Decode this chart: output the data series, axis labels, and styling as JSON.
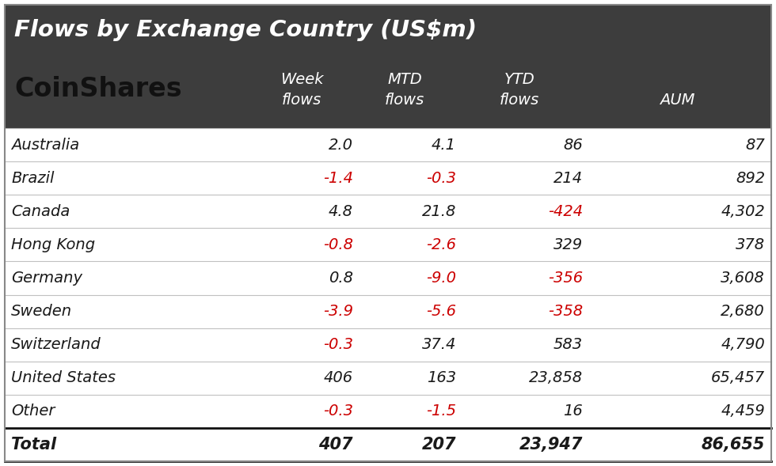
{
  "title": "Flows by Exchange Country (US$m)",
  "logo_text": "CoinShares",
  "header_bg": "#3d3d3d",
  "header_text_color": "#ffffff",
  "body_bg": "#ffffff",
  "body_text_color": "#1a1a1a",
  "negative_color": "#cc0000",
  "col_header_line1": [
    "",
    "Week",
    "MTD",
    "YTD",
    ""
  ],
  "col_header_line2": [
    "",
    "flows",
    "flows",
    "flows",
    "AUM"
  ],
  "rows": [
    {
      "country": "Australia",
      "week": "2.0",
      "mtd": "4.1",
      "ytd": "86",
      "aum": "87",
      "week_neg": false,
      "mtd_neg": false,
      "ytd_neg": false
    },
    {
      "country": "Brazil",
      "week": "-1.4",
      "mtd": "-0.3",
      "ytd": "214",
      "aum": "892",
      "week_neg": true,
      "mtd_neg": true,
      "ytd_neg": false
    },
    {
      "country": "Canada",
      "week": "4.8",
      "mtd": "21.8",
      "ytd": "-424",
      "aum": "4,302",
      "week_neg": false,
      "mtd_neg": false,
      "ytd_neg": true
    },
    {
      "country": "Hong Kong",
      "week": "-0.8",
      "mtd": "-2.6",
      "ytd": "329",
      "aum": "378",
      "week_neg": true,
      "mtd_neg": true,
      "ytd_neg": false
    },
    {
      "country": "Germany",
      "week": "0.8",
      "mtd": "-9.0",
      "ytd": "-356",
      "aum": "3,608",
      "week_neg": false,
      "mtd_neg": true,
      "ytd_neg": true
    },
    {
      "country": "Sweden",
      "week": "-3.9",
      "mtd": "-5.6",
      "ytd": "-358",
      "aum": "2,680",
      "week_neg": true,
      "mtd_neg": true,
      "ytd_neg": true
    },
    {
      "country": "Switzerland",
      "week": "-0.3",
      "mtd": "37.4",
      "ytd": "583",
      "aum": "4,790",
      "week_neg": true,
      "mtd_neg": false,
      "ytd_neg": false
    },
    {
      "country": "United States",
      "week": "406",
      "mtd": "163",
      "ytd": "23,858",
      "aum": "65,457",
      "week_neg": false,
      "mtd_neg": false,
      "ytd_neg": false
    },
    {
      "country": "Other",
      "week": "-0.3",
      "mtd": "-1.5",
      "ytd": "16",
      "aum": "4,459",
      "week_neg": true,
      "mtd_neg": true,
      "ytd_neg": false
    }
  ],
  "total": {
    "label": "Total",
    "week": "407",
    "mtd": "207",
    "ytd": "23,947",
    "aum": "86,655"
  },
  "figsize": [
    9.8,
    5.89
  ],
  "dpi": 100,
  "title_fontsize": 21,
  "logo_fontsize": 24,
  "header_col_fontsize": 14,
  "data_fontsize": 14,
  "total_fontsize": 15
}
